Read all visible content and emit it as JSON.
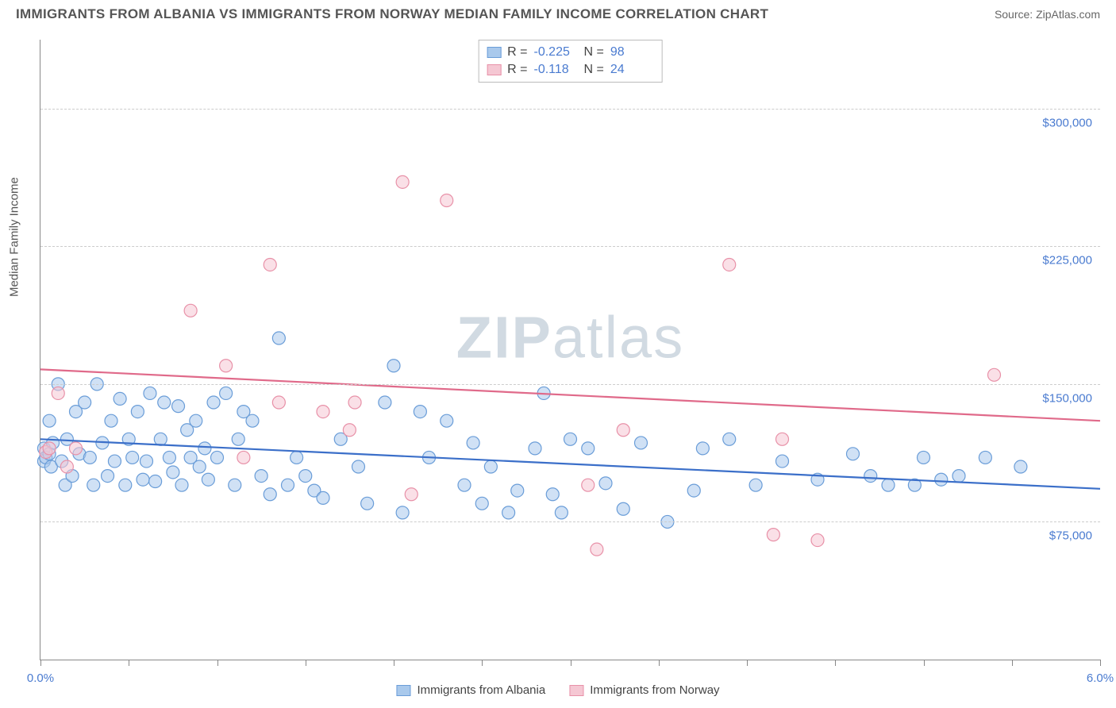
{
  "title": "IMMIGRANTS FROM ALBANIA VS IMMIGRANTS FROM NORWAY MEDIAN FAMILY INCOME CORRELATION CHART",
  "source": "Source: ZipAtlas.com",
  "watermark_bold": "ZIP",
  "watermark_rest": "atlas",
  "y_axis_title": "Median Family Income",
  "chart": {
    "type": "scatter",
    "xlim": [
      0.0,
      6.0
    ],
    "ylim": [
      0,
      337500
    ],
    "x_ticks": [
      0.0,
      0.5,
      1.0,
      1.5,
      2.0,
      2.5,
      3.0,
      3.5,
      4.0,
      4.5,
      5.0,
      5.5,
      6.0
    ],
    "x_tick_labels": {
      "0": "0.0%",
      "6": "6.0%"
    },
    "y_gridlines": [
      75000,
      150000,
      225000,
      300000
    ],
    "y_tick_labels": {
      "75000": "$75,000",
      "150000": "$150,000",
      "225000": "$225,000",
      "300000": "$300,000"
    },
    "background_color": "#ffffff",
    "grid_color": "#cccccc",
    "axis_color": "#888888",
    "tick_label_color": "#4a7bd0",
    "marker_radius": 8,
    "marker_opacity": 0.55,
    "line_width": 2.2
  },
  "series": [
    {
      "name": "Immigrants from Albania",
      "color_fill": "#a9c9ec",
      "color_stroke": "#6a9dd8",
      "line_color": "#3b6fc9",
      "R": "-0.225",
      "N": "98",
      "trend": {
        "x1": 0.0,
        "y1": 120000,
        "x2": 6.0,
        "y2": 93000
      },
      "points": [
        [
          0.02,
          115000
        ],
        [
          0.02,
          108000
        ],
        [
          0.03,
          110000
        ],
        [
          0.05,
          112000
        ],
        [
          0.05,
          130000
        ],
        [
          0.06,
          105000
        ],
        [
          0.07,
          118000
        ],
        [
          0.1,
          150000
        ],
        [
          0.12,
          108000
        ],
        [
          0.14,
          95000
        ],
        [
          0.15,
          120000
        ],
        [
          0.18,
          100000
        ],
        [
          0.2,
          135000
        ],
        [
          0.22,
          112000
        ],
        [
          0.25,
          140000
        ],
        [
          0.28,
          110000
        ],
        [
          0.3,
          95000
        ],
        [
          0.32,
          150000
        ],
        [
          0.35,
          118000
        ],
        [
          0.38,
          100000
        ],
        [
          0.4,
          130000
        ],
        [
          0.42,
          108000
        ],
        [
          0.45,
          142000
        ],
        [
          0.48,
          95000
        ],
        [
          0.5,
          120000
        ],
        [
          0.52,
          110000
        ],
        [
          0.55,
          135000
        ],
        [
          0.58,
          98000
        ],
        [
          0.6,
          108000
        ],
        [
          0.62,
          145000
        ],
        [
          0.65,
          97000
        ],
        [
          0.68,
          120000
        ],
        [
          0.7,
          140000
        ],
        [
          0.73,
          110000
        ],
        [
          0.75,
          102000
        ],
        [
          0.78,
          138000
        ],
        [
          0.8,
          95000
        ],
        [
          0.83,
          125000
        ],
        [
          0.85,
          110000
        ],
        [
          0.88,
          130000
        ],
        [
          0.9,
          105000
        ],
        [
          0.93,
          115000
        ],
        [
          0.95,
          98000
        ],
        [
          0.98,
          140000
        ],
        [
          1.0,
          110000
        ],
        [
          1.05,
          145000
        ],
        [
          1.1,
          95000
        ],
        [
          1.12,
          120000
        ],
        [
          1.15,
          135000
        ],
        [
          1.2,
          130000
        ],
        [
          1.25,
          100000
        ],
        [
          1.3,
          90000
        ],
        [
          1.35,
          175000
        ],
        [
          1.4,
          95000
        ],
        [
          1.45,
          110000
        ],
        [
          1.5,
          100000
        ],
        [
          1.55,
          92000
        ],
        [
          1.6,
          88000
        ],
        [
          1.7,
          120000
        ],
        [
          1.8,
          105000
        ],
        [
          1.85,
          85000
        ],
        [
          1.95,
          140000
        ],
        [
          2.0,
          160000
        ],
        [
          2.05,
          80000
        ],
        [
          2.15,
          135000
        ],
        [
          2.2,
          110000
        ],
        [
          2.3,
          130000
        ],
        [
          2.4,
          95000
        ],
        [
          2.45,
          118000
        ],
        [
          2.5,
          85000
        ],
        [
          2.55,
          105000
        ],
        [
          2.65,
          80000
        ],
        [
          2.7,
          92000
        ],
        [
          2.8,
          115000
        ],
        [
          2.85,
          145000
        ],
        [
          2.9,
          90000
        ],
        [
          2.95,
          80000
        ],
        [
          3.0,
          120000
        ],
        [
          3.1,
          115000
        ],
        [
          3.2,
          96000
        ],
        [
          3.3,
          82000
        ],
        [
          3.4,
          118000
        ],
        [
          3.55,
          75000
        ],
        [
          3.7,
          92000
        ],
        [
          3.75,
          115000
        ],
        [
          3.9,
          120000
        ],
        [
          4.05,
          95000
        ],
        [
          4.2,
          108000
        ],
        [
          4.4,
          98000
        ],
        [
          4.6,
          112000
        ],
        [
          4.7,
          100000
        ],
        [
          4.8,
          95000
        ],
        [
          4.95,
          95000
        ],
        [
          5.0,
          110000
        ],
        [
          5.1,
          98000
        ],
        [
          5.2,
          100000
        ],
        [
          5.35,
          110000
        ],
        [
          5.55,
          105000
        ]
      ]
    },
    {
      "name": "Immigrants from Norway",
      "color_fill": "#f5c7d3",
      "color_stroke": "#e891a8",
      "line_color": "#e06a8a",
      "R": "-0.118",
      "N": "24",
      "trend": {
        "x1": 0.0,
        "y1": 158000,
        "x2": 6.0,
        "y2": 130000
      },
      "points": [
        [
          0.03,
          113000
        ],
        [
          0.05,
          115000
        ],
        [
          0.1,
          145000
        ],
        [
          0.15,
          105000
        ],
        [
          0.2,
          115000
        ],
        [
          0.85,
          190000
        ],
        [
          1.05,
          160000
        ],
        [
          1.15,
          110000
        ],
        [
          1.3,
          215000
        ],
        [
          1.35,
          140000
        ],
        [
          1.6,
          135000
        ],
        [
          1.75,
          125000
        ],
        [
          1.78,
          140000
        ],
        [
          2.05,
          260000
        ],
        [
          2.1,
          90000
        ],
        [
          2.3,
          250000
        ],
        [
          3.1,
          95000
        ],
        [
          3.15,
          60000
        ],
        [
          3.3,
          125000
        ],
        [
          3.9,
          215000
        ],
        [
          4.15,
          68000
        ],
        [
          4.2,
          120000
        ],
        [
          4.4,
          65000
        ],
        [
          5.4,
          155000
        ]
      ]
    }
  ],
  "stats_box": {
    "r_label": "R =",
    "n_label": "N ="
  },
  "legend_label_0": "Immigrants from Albania",
  "legend_label_1": "Immigrants from Norway"
}
